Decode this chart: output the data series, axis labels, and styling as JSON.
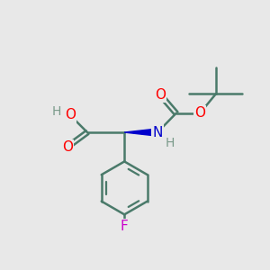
{
  "background_color": "#e8e8e8",
  "bond_color": "#4a7a6a",
  "bond_width": 1.8,
  "atom_colors": {
    "O": "#ff0000",
    "N": "#0000cc",
    "F": "#cc00cc",
    "H": "#7a9a8a",
    "C": "#4a7a6a"
  },
  "font_size_atoms": 11,
  "figsize": [
    3.0,
    3.0
  ],
  "dpi": 100
}
